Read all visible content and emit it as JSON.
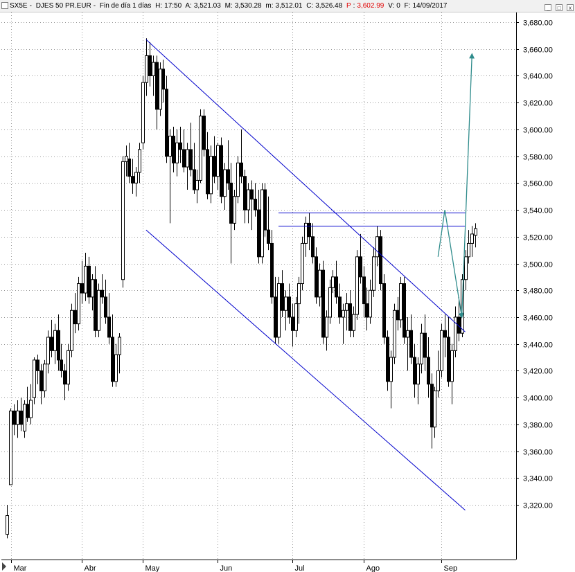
{
  "header": {
    "symbol": "SX5E",
    "name": "DJES 50 PR.EUR",
    "period": "Fin de día 1 días",
    "h_label": "H:",
    "h_value": "17:50",
    "a_label": "A:",
    "a_value": "3,521.03",
    "m_label": "M:",
    "m_value": "3,530.28",
    "min_label": "m:",
    "min_value": "3,512.01",
    "c_label": "C:",
    "c_value": "3,526.48",
    "p_label": "P",
    "p_value": "3,602.99",
    "v_label": "V:",
    "v_value": "0",
    "f_label": "F:",
    "f_value": "14/09/2017"
  },
  "window_buttons": {
    "minimize": "_",
    "maximize": "□",
    "close": "x"
  },
  "colors": {
    "candle": "#000000",
    "channel": "#0000cc",
    "projection": "#2e8b8b",
    "grid": "#999999",
    "price_p": "#e00000"
  },
  "chart_data": {
    "type": "candlestick",
    "ylim": [
      3300,
      3690
    ],
    "y_ticks": [
      3320,
      3340,
      3360,
      3380,
      3400,
      3420,
      3440,
      3460,
      3480,
      3500,
      3520,
      3540,
      3560,
      3580,
      3600,
      3620,
      3640,
      3660,
      3680
    ],
    "y_tick_labels": [
      "3,320.00",
      "3,340.00",
      "3,360.00",
      "3,380.00",
      "3,400.00",
      "3,420.00",
      "3,440.00",
      "3,460.00",
      "3,480.00",
      "3,500.00",
      "3,520.00",
      "3,540.00",
      "3,560.00",
      "3,580.00",
      "3,600.00",
      "3,620.00",
      "3,640.00",
      "3,660.00",
      "3,680.00"
    ],
    "months": [
      {
        "label": "Mar",
        "day": 0
      },
      {
        "label": "Abr",
        "day": 22
      },
      {
        "label": "May",
        "day": 40
      },
      {
        "label": "Jun",
        "day": 62
      },
      {
        "label": "Jul",
        "day": 84
      },
      {
        "label": "Ago",
        "day": 105
      },
      {
        "label": "Sep",
        "day": 128
      }
    ],
    "candles": [
      [
        3298,
        3320,
        3295,
        3312
      ],
      [
        3335,
        3392,
        3335,
        3390
      ],
      [
        3390,
        3395,
        3372,
        3380
      ],
      [
        3380,
        3398,
        3370,
        3390
      ],
      [
        3390,
        3400,
        3375,
        3380
      ],
      [
        3375,
        3398,
        3370,
        3395
      ],
      [
        3395,
        3408,
        3382,
        3385
      ],
      [
        3385,
        3410,
        3380,
        3398
      ],
      [
        3400,
        3430,
        3395,
        3428
      ],
      [
        3428,
        3432,
        3410,
        3420
      ],
      [
        3420,
        3425,
        3395,
        3405
      ],
      [
        3405,
        3428,
        3400,
        3425
      ],
      [
        3425,
        3450,
        3418,
        3445
      ],
      [
        3445,
        3458,
        3430,
        3435
      ],
      [
        3435,
        3455,
        3425,
        3450
      ],
      [
        3450,
        3462,
        3420,
        3428
      ],
      [
        3428,
        3440,
        3415,
        3420
      ],
      [
        3420,
        3425,
        3398,
        3410
      ],
      [
        3410,
        3440,
        3405,
        3435
      ],
      [
        3435,
        3470,
        3430,
        3465
      ],
      [
        3465,
        3478,
        3448,
        3455
      ],
      [
        3455,
        3490,
        3450,
        3485
      ],
      [
        3485,
        3502,
        3470,
        3478
      ],
      [
        3478,
        3508,
        3472,
        3498
      ],
      [
        3498,
        3505,
        3470,
        3475
      ],
      [
        3475,
        3492,
        3465,
        3488
      ],
      [
        3488,
        3498,
        3445,
        3450
      ],
      [
        3450,
        3485,
        3445,
        3480
      ],
      [
        3480,
        3492,
        3470,
        3475
      ],
      [
        3475,
        3488,
        3455,
        3460
      ],
      [
        3460,
        3478,
        3440,
        3445
      ],
      [
        3445,
        3462,
        3408,
        3412
      ],
      [
        3412,
        3440,
        3408,
        3432
      ],
      [
        3432,
        3448,
        3418,
        3445
      ],
      [
        3488,
        3580,
        3482,
        3576
      ],
      [
        3576,
        3588,
        3565,
        3580
      ],
      [
        3578,
        3590,
        3560,
        3565
      ],
      [
        3565,
        3578,
        3552,
        3560
      ],
      [
        3560,
        3572,
        3550,
        3568
      ],
      [
        3568,
        3590,
        3560,
        3585
      ],
      [
        3590,
        3640,
        3585,
        3635
      ],
      [
        3635,
        3668,
        3625,
        3655
      ],
      [
        3655,
        3665,
        3632,
        3640
      ],
      [
        3640,
        3655,
        3625,
        3650
      ],
      [
        3650,
        3655,
        3600,
        3615
      ],
      [
        3615,
        3650,
        3610,
        3645
      ],
      [
        3645,
        3652,
        3620,
        3630
      ],
      [
        3630,
        3640,
        3575,
        3580
      ],
      [
        3580,
        3600,
        3530,
        3595
      ],
      [
        3595,
        3602,
        3568,
        3575
      ],
      [
        3575,
        3600,
        3565,
        3590
      ],
      [
        3590,
        3602,
        3575,
        3585
      ],
      [
        3585,
        3600,
        3568,
        3572
      ],
      [
        3572,
        3590,
        3555,
        3585
      ],
      [
        3585,
        3605,
        3565,
        3570
      ],
      [
        3570,
        3590,
        3552,
        3555
      ],
      [
        3555,
        3570,
        3545,
        3562
      ],
      [
        3562,
        3615,
        3560,
        3610
      ],
      [
        3610,
        3615,
        3580,
        3585
      ],
      [
        3585,
        3598,
        3548,
        3552
      ],
      [
        3552,
        3588,
        3545,
        3580
      ],
      [
        3580,
        3595,
        3560,
        3565
      ],
      [
        3565,
        3590,
        3555,
        3588
      ],
      [
        3588,
        3594,
        3545,
        3550
      ],
      [
        3550,
        3575,
        3540,
        3570
      ],
      [
        3570,
        3592,
        3555,
        3560
      ],
      [
        3560,
        3575,
        3500,
        3530
      ],
      [
        3530,
        3555,
        3525,
        3550
      ],
      [
        3550,
        3580,
        3545,
        3575
      ],
      [
        3575,
        3600,
        3560,
        3565
      ],
      [
        3565,
        3570,
        3530,
        3540
      ],
      [
        3540,
        3560,
        3530,
        3555
      ],
      [
        3555,
        3562,
        3525,
        3548
      ],
      [
        3548,
        3560,
        3535,
        3540
      ],
      [
        3540,
        3555,
        3500,
        3505
      ],
      [
        3505,
        3560,
        3500,
        3555
      ],
      [
        3555,
        3560,
        3520,
        3525
      ],
      [
        3525,
        3550,
        3510,
        3515
      ],
      [
        3515,
        3525,
        3470,
        3475
      ],
      [
        3475,
        3490,
        3440,
        3445
      ],
      [
        3445,
        3490,
        3440,
        3485
      ],
      [
        3485,
        3495,
        3460,
        3465
      ],
      [
        3465,
        3480,
        3450,
        3475
      ],
      [
        3475,
        3485,
        3455,
        3460
      ],
      [
        3460,
        3470,
        3438,
        3450
      ],
      [
        3450,
        3475,
        3445,
        3470
      ],
      [
        3470,
        3490,
        3455,
        3485
      ],
      [
        3485,
        3520,
        3480,
        3515
      ],
      [
        3515,
        3535,
        3505,
        3530
      ],
      [
        3530,
        3538,
        3510,
        3520
      ],
      [
        3520,
        3530,
        3500,
        3505
      ],
      [
        3505,
        3512,
        3470,
        3475
      ],
      [
        3475,
        3500,
        3468,
        3495
      ],
      [
        3495,
        3502,
        3440,
        3445
      ],
      [
        3445,
        3465,
        3435,
        3460
      ],
      [
        3460,
        3488,
        3455,
        3482
      ],
      [
        3482,
        3495,
        3478,
        3490
      ],
      [
        3490,
        3502,
        3470,
        3475
      ],
      [
        3475,
        3485,
        3455,
        3460
      ],
      [
        3460,
        3470,
        3440,
        3465
      ],
      [
        3465,
        3478,
        3450,
        3470
      ],
      [
        3470,
        3480,
        3445,
        3450
      ],
      [
        3450,
        3468,
        3445,
        3462
      ],
      [
        3462,
        3510,
        3458,
        3505
      ],
      [
        3505,
        3522,
        3485,
        3490
      ],
      [
        3490,
        3498,
        3460,
        3470
      ],
      [
        3470,
        3482,
        3450,
        3460
      ],
      [
        3460,
        3488,
        3455,
        3480
      ],
      [
        3480,
        3512,
        3475,
        3505
      ],
      [
        3505,
        3528,
        3498,
        3520
      ],
      [
        3520,
        3525,
        3480,
        3485
      ],
      [
        3485,
        3492,
        3440,
        3445
      ],
      [
        3445,
        3450,
        3405,
        3412
      ],
      [
        3412,
        3435,
        3392,
        3430
      ],
      [
        3430,
        3470,
        3425,
        3465
      ],
      [
        3465,
        3475,
        3450,
        3458
      ],
      [
        3458,
        3490,
        3452,
        3485
      ],
      [
        3485,
        3490,
        3440,
        3445
      ],
      [
        3445,
        3460,
        3420,
        3450
      ],
      [
        3450,
        3462,
        3425,
        3430
      ],
      [
        3430,
        3440,
        3400,
        3410
      ],
      [
        3410,
        3430,
        3395,
        3425
      ],
      [
        3425,
        3455,
        3418,
        3448
      ],
      [
        3448,
        3462,
        3420,
        3430
      ],
      [
        3430,
        3445,
        3400,
        3410
      ],
      [
        3410,
        3418,
        3362,
        3378
      ],
      [
        3378,
        3408,
        3370,
        3405
      ],
      [
        3405,
        3435,
        3400,
        3420
      ],
      [
        3420,
        3455,
        3415,
        3450
      ],
      [
        3450,
        3462,
        3430,
        3445
      ],
      [
        3445,
        3460,
        3408,
        3412
      ],
      [
        3412,
        3440,
        3395,
        3435
      ],
      [
        3435,
        3468,
        3430,
        3460
      ],
      [
        3460,
        3475,
        3442,
        3448
      ],
      [
        3448,
        3492,
        3445,
        3488
      ],
      [
        3488,
        3510,
        3480,
        3505
      ],
      [
        3505,
        3525,
        3500,
        3515
      ],
      [
        3515,
        3528,
        3505,
        3522
      ],
      [
        3521,
        3530,
        3512,
        3526
      ]
    ],
    "channel_upper": {
      "from": {
        "day": 41,
        "price": 3667
      },
      "to": {
        "day": 135,
        "price": 3449
      }
    },
    "channel_lower": {
      "from": {
        "day": 41,
        "price": 3525
      },
      "to": {
        "day": 135,
        "price": 3316
      }
    },
    "resistance_lines": [
      {
        "price": 3538,
        "from_day": 80,
        "to_day": 135
      },
      {
        "price": 3528,
        "from_day": 80,
        "to_day": 135
      }
    ],
    "projection": [
      {
        "day": 127,
        "price": 3505
      },
      {
        "day": 129,
        "price": 3540
      },
      {
        "day": 134,
        "price": 3460
      },
      {
        "day": 137,
        "price": 3656
      }
    ],
    "grid": true
  }
}
